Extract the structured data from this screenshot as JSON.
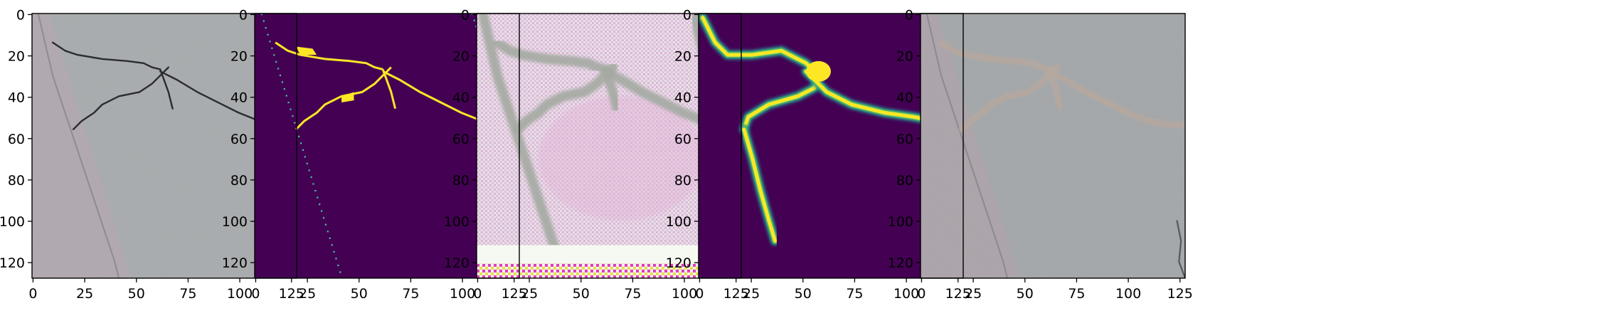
{
  "figure": {
    "panels": [
      {
        "name": "panel-1-input-photo",
        "content": "photo",
        "colors": {
          "base": "#a9acae",
          "mid": "#9ea2a6",
          "light": "#b6b9bb",
          "pinkish": "#b4a8b0",
          "crack": "#2a2c30"
        }
      },
      {
        "name": "panel-2-ground-truth",
        "content": "mask",
        "colors": {
          "background": "#440154",
          "foreground": "#fde725",
          "dots": "#49c1a0"
        }
      },
      {
        "name": "panel-3-reconstruction",
        "content": "reconstruction",
        "colors": {
          "background": "#eadbe6",
          "pink": "#e2b6d8",
          "lines": "#a4aaa2",
          "bottom_band": "#f6f8f2",
          "artifact_magenta": "#e040b8",
          "artifact_yellow": "#e8e040"
        }
      },
      {
        "name": "panel-4-prediction",
        "content": "prediction",
        "colors": {
          "background": "#440154",
          "high": "#fde725",
          "mid": "#5ec962",
          "edge": "#21918c"
        }
      },
      {
        "name": "panel-5-overlay",
        "content": "overlay",
        "colors": {
          "base": "#a8abad",
          "pinkish": "#b2a7ae",
          "overlay": "#b8a89e"
        }
      }
    ],
    "axes": {
      "x_ticks": [
        "0",
        "25",
        "50",
        "75",
        "100",
        "125"
      ],
      "y_ticks": [
        "0",
        "20",
        "40",
        "60",
        "80",
        "100",
        "120"
      ]
    }
  }
}
